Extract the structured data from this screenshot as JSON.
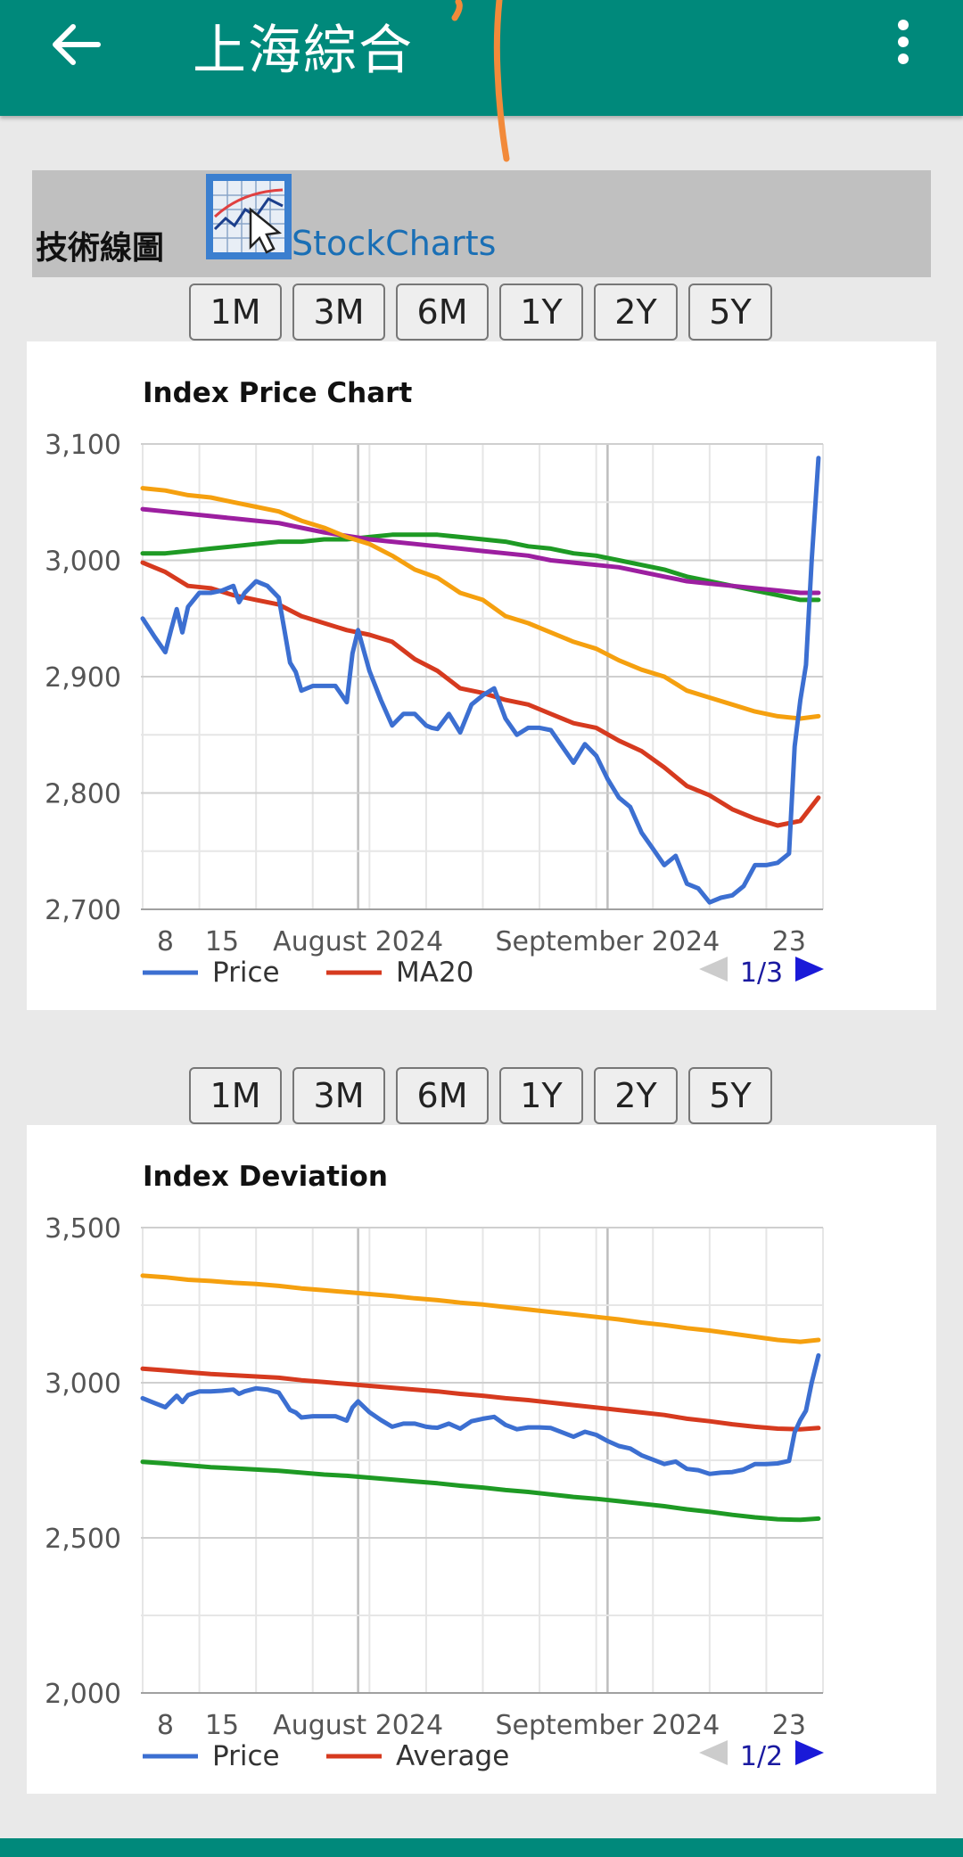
{
  "appbar": {
    "title": "上海綜合",
    "back_icon": "arrow-left-icon",
    "menu_icon": "more-vert-icon",
    "color": "#00897b"
  },
  "tech": {
    "label": "技術線圖",
    "link": "StockCharts",
    "logo_icon": "stockcharts-logo-icon"
  },
  "ranges": [
    "1M",
    "3M",
    "6M",
    "1Y",
    "2Y",
    "5Y"
  ],
  "chart_data": [
    {
      "type": "line",
      "title": "Index Price Chart",
      "ylim": [
        2700,
        3100
      ],
      "yticks": [
        2700,
        2800,
        2900,
        3000,
        3100
      ],
      "ytick_labels": [
        "2,700",
        "2,800",
        "2,900",
        "3,000",
        "3,100"
      ],
      "xticks": [
        {
          "label": "8",
          "x": 2
        },
        {
          "label": "15",
          "x": 7
        },
        {
          "label": "August 2024",
          "x": 19
        },
        {
          "label": "September 2024",
          "x": 41
        },
        {
          "label": "23",
          "x": 57
        }
      ],
      "month_lines": [
        19,
        41
      ],
      "xlim": [
        0,
        60
      ],
      "grid": true,
      "legend": {
        "entries": [
          {
            "name": "Price",
            "color": "#3c6fd1"
          },
          {
            "name": "MA20",
            "color": "#d63a1f"
          }
        ],
        "page": "1/3",
        "position": "bottom"
      },
      "series": [
        {
          "name": "Price",
          "color": "#3c6fd1",
          "x": [
            0,
            1,
            2,
            2.5,
            3,
            3.5,
            4,
            5,
            6,
            7,
            8,
            8.5,
            9,
            10,
            11,
            12,
            12.5,
            13,
            13.5,
            14,
            15,
            16,
            17,
            18,
            18.5,
            19,
            20,
            21,
            22,
            23,
            24,
            25,
            25.5,
            26,
            27,
            28,
            29,
            30,
            31,
            32,
            33,
            34,
            35,
            36,
            37,
            38,
            39,
            40,
            41,
            42,
            43,
            44,
            45,
            46,
            47,
            48,
            49,
            50,
            51,
            52,
            53,
            54,
            55,
            56,
            57,
            57.5,
            58,
            58.5,
            59,
            59.6
          ],
          "y": [
            2950,
            2935,
            2921,
            2940,
            2958,
            2938,
            2960,
            2972,
            2972,
            2974,
            2978,
            2964,
            2972,
            2982,
            2978,
            2968,
            2940,
            2912,
            2904,
            2888,
            2892,
            2892,
            2892,
            2878,
            2920,
            2940,
            2905,
            2880,
            2858,
            2868,
            2868,
            2858,
            2856,
            2855,
            2868,
            2852,
            2876,
            2884,
            2890,
            2864,
            2850,
            2856,
            2856,
            2854,
            2840,
            2826,
            2842,
            2832,
            2812,
            2796,
            2788,
            2766,
            2752,
            2738,
            2746,
            2722,
            2718,
            2706,
            2710,
            2712,
            2720,
            2738,
            2738,
            2740,
            2748,
            2840,
            2880,
            2910,
            3000,
            3088
          ]
        },
        {
          "name": "MA20",
          "color": "#d63a1f",
          "x": [
            0,
            2,
            4,
            6,
            8,
            10,
            12,
            14,
            16,
            18,
            20,
            22,
            24,
            26,
            28,
            30,
            32,
            34,
            36,
            38,
            40,
            42,
            44,
            46,
            48,
            50,
            52,
            54,
            56,
            58,
            59.6
          ],
          "y": [
            2998,
            2990,
            2978,
            2976,
            2970,
            2966,
            2962,
            2952,
            2946,
            2940,
            2936,
            2930,
            2915,
            2905,
            2890,
            2886,
            2880,
            2876,
            2868,
            2860,
            2856,
            2845,
            2836,
            2822,
            2806,
            2798,
            2786,
            2778,
            2772,
            2776,
            2796
          ]
        },
        {
          "name": "",
          "color": "#f5a00f",
          "x": [
            0,
            2,
            4,
            6,
            8,
            10,
            12,
            14,
            16,
            18,
            20,
            22,
            24,
            26,
            28,
            30,
            32,
            34,
            36,
            38,
            40,
            42,
            44,
            46,
            48,
            50,
            52,
            54,
            56,
            58,
            59.6
          ],
          "y": [
            3062,
            3060,
            3056,
            3054,
            3050,
            3046,
            3042,
            3034,
            3028,
            3020,
            3014,
            3004,
            2992,
            2985,
            2972,
            2966,
            2952,
            2946,
            2938,
            2930,
            2924,
            2914,
            2906,
            2900,
            2888,
            2882,
            2876,
            2870,
            2866,
            2864,
            2866
          ]
        },
        {
          "name": "",
          "color": "#9c1fa0",
          "x": [
            0,
            2,
            4,
            6,
            8,
            10,
            12,
            14,
            16,
            18,
            20,
            22,
            24,
            26,
            28,
            30,
            32,
            34,
            36,
            38,
            40,
            42,
            44,
            46,
            48,
            50,
            52,
            54,
            56,
            58,
            59.6
          ],
          "y": [
            3044,
            3042,
            3040,
            3038,
            3036,
            3034,
            3032,
            3028,
            3024,
            3021,
            3018,
            3016,
            3014,
            3012,
            3010,
            3008,
            3006,
            3004,
            3000,
            2998,
            2996,
            2994,
            2990,
            2986,
            2982,
            2980,
            2978,
            2976,
            2974,
            2972,
            2972
          ]
        },
        {
          "name": "",
          "color": "#1e9a24",
          "x": [
            0,
            2,
            4,
            6,
            8,
            10,
            12,
            14,
            16,
            18,
            20,
            22,
            24,
            26,
            28,
            30,
            32,
            34,
            36,
            38,
            40,
            42,
            44,
            46,
            48,
            50,
            52,
            54,
            56,
            58,
            59.6
          ],
          "y": [
            3006,
            3006,
            3008,
            3010,
            3012,
            3014,
            3016,
            3016,
            3018,
            3018,
            3020,
            3022,
            3022,
            3022,
            3020,
            3018,
            3016,
            3012,
            3010,
            3006,
            3004,
            3000,
            2996,
            2992,
            2986,
            2982,
            2978,
            2974,
            2970,
            2966,
            2966
          ]
        }
      ]
    },
    {
      "type": "line",
      "title": "Index Deviation",
      "ylim": [
        2000,
        3500
      ],
      "yticks": [
        2000,
        2500,
        3000,
        3500
      ],
      "ytick_labels": [
        "2,000",
        "2,500",
        "3,000",
        "3,500"
      ],
      "xticks": [
        {
          "label": "8",
          "x": 2
        },
        {
          "label": "15",
          "x": 7
        },
        {
          "label": "August 2024",
          "x": 19
        },
        {
          "label": "September 2024",
          "x": 41
        },
        {
          "label": "23",
          "x": 57
        }
      ],
      "month_lines": [
        19,
        41
      ],
      "xlim": [
        0,
        60
      ],
      "grid": true,
      "legend": {
        "entries": [
          {
            "name": "Price",
            "color": "#3c6fd1"
          },
          {
            "name": "Average",
            "color": "#d63a1f"
          }
        ],
        "page": "1/2",
        "position": "bottom"
      },
      "series": [
        {
          "name": "Price",
          "color": "#3c6fd1",
          "x": [
            0,
            1,
            2,
            2.5,
            3,
            3.5,
            4,
            5,
            6,
            7,
            8,
            8.5,
            9,
            10,
            11,
            12,
            12.5,
            13,
            13.5,
            14,
            15,
            16,
            17,
            18,
            18.5,
            19,
            20,
            21,
            22,
            23,
            24,
            25,
            25.5,
            26,
            27,
            28,
            29,
            30,
            31,
            32,
            33,
            34,
            35,
            36,
            37,
            38,
            39,
            40,
            41,
            42,
            43,
            44,
            45,
            46,
            47,
            48,
            49,
            50,
            51,
            52,
            53,
            54,
            55,
            56,
            57,
            57.5,
            58,
            58.5,
            59,
            59.6
          ],
          "y": [
            2950,
            2935,
            2921,
            2940,
            2958,
            2938,
            2960,
            2972,
            2972,
            2974,
            2978,
            2964,
            2972,
            2982,
            2978,
            2968,
            2940,
            2912,
            2904,
            2888,
            2892,
            2892,
            2892,
            2878,
            2920,
            2940,
            2905,
            2880,
            2858,
            2868,
            2868,
            2858,
            2856,
            2855,
            2868,
            2852,
            2876,
            2884,
            2890,
            2864,
            2850,
            2856,
            2856,
            2854,
            2840,
            2826,
            2842,
            2832,
            2812,
            2796,
            2788,
            2766,
            2752,
            2738,
            2746,
            2722,
            2718,
            2706,
            2710,
            2712,
            2720,
            2738,
            2738,
            2740,
            2748,
            2840,
            2880,
            2910,
            3000,
            3088
          ]
        },
        {
          "name": "Average",
          "color": "#d63a1f",
          "x": [
            0,
            2,
            4,
            6,
            8,
            10,
            12,
            14,
            16,
            18,
            20,
            22,
            24,
            26,
            28,
            30,
            32,
            34,
            36,
            38,
            40,
            42,
            44,
            46,
            48,
            50,
            52,
            54,
            56,
            58,
            59.6
          ],
          "y": [
            3045,
            3040,
            3034,
            3028,
            3024,
            3020,
            3016,
            3008,
            3002,
            2996,
            2990,
            2984,
            2978,
            2972,
            2964,
            2958,
            2950,
            2944,
            2936,
            2928,
            2920,
            2912,
            2904,
            2896,
            2884,
            2876,
            2866,
            2858,
            2852,
            2850,
            2854
          ]
        },
        {
          "name": "",
          "color": "#f5a00f",
          "x": [
            0,
            2,
            4,
            6,
            8,
            10,
            12,
            14,
            16,
            18,
            20,
            22,
            24,
            26,
            28,
            30,
            32,
            34,
            36,
            38,
            40,
            42,
            44,
            46,
            48,
            50,
            52,
            54,
            56,
            58,
            59.6
          ],
          "y": [
            3345,
            3340,
            3332,
            3328,
            3322,
            3318,
            3312,
            3304,
            3298,
            3292,
            3286,
            3280,
            3272,
            3266,
            3258,
            3252,
            3244,
            3236,
            3228,
            3220,
            3212,
            3204,
            3194,
            3186,
            3176,
            3168,
            3158,
            3148,
            3138,
            3132,
            3138
          ]
        },
        {
          "name": "",
          "color": "#1e9a24",
          "x": [
            0,
            2,
            4,
            6,
            8,
            10,
            12,
            14,
            16,
            18,
            20,
            22,
            24,
            26,
            28,
            30,
            32,
            34,
            36,
            38,
            40,
            42,
            44,
            46,
            48,
            50,
            52,
            54,
            56,
            58,
            59.6
          ],
          "y": [
            2745,
            2740,
            2734,
            2728,
            2724,
            2720,
            2716,
            2710,
            2704,
            2700,
            2694,
            2688,
            2682,
            2676,
            2668,
            2662,
            2654,
            2648,
            2640,
            2632,
            2626,
            2618,
            2610,
            2602,
            2592,
            2584,
            2574,
            2566,
            2560,
            2558,
            2562
          ]
        }
      ]
    }
  ]
}
